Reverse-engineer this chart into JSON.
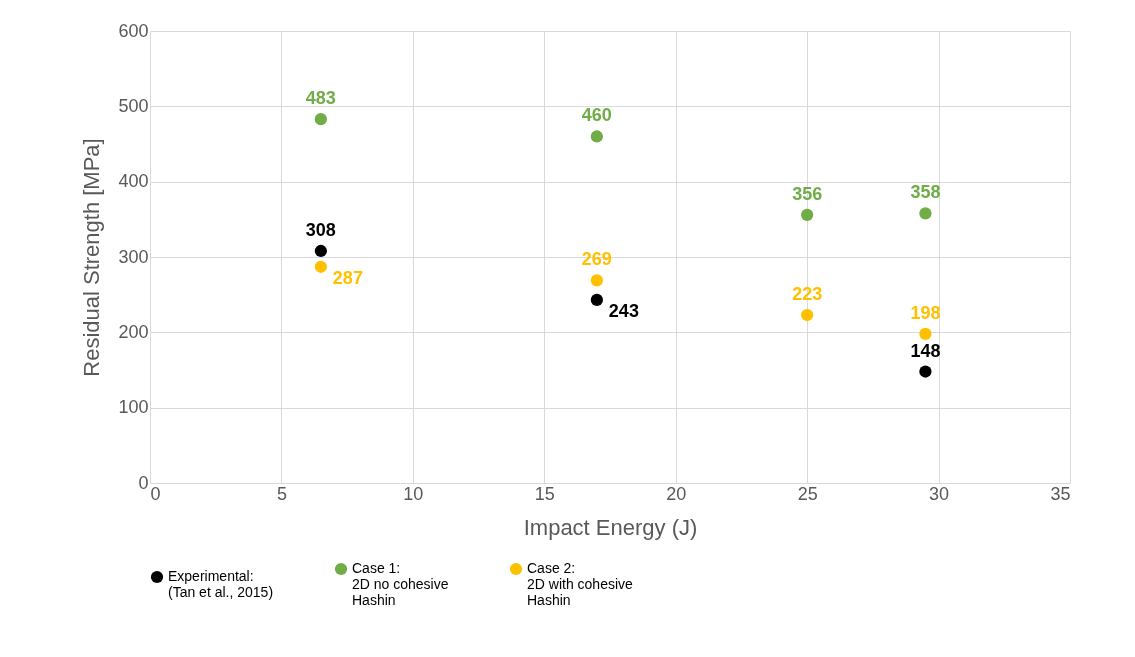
{
  "chart_data": {
    "type": "scatter",
    "xlabel": "Impact Energy (J)",
    "ylabel": "Residual Strength [MPa]",
    "x": [
      6.5,
      17,
      25,
      29.5
    ],
    "series": [
      {
        "name": "Experimental:\n(Tan et al., 2015)",
        "color": "#000000",
        "x": [
          6.5,
          17,
          29.5
        ],
        "values": [
          308,
          243,
          148
        ]
      },
      {
        "name": "Case 1:\n2D no cohesive\nHashin",
        "color": "#70ad47",
        "values": [
          483,
          460,
          356,
          358
        ]
      },
      {
        "name": "Case 2:\n2D with cohesive\nHashin",
        "color": "#ffc000",
        "values": [
          287,
          269,
          223,
          198
        ]
      }
    ],
    "xlim": [
      0,
      35
    ],
    "xticks": [
      0,
      5,
      10,
      15,
      20,
      25,
      30,
      35
    ],
    "ylim": [
      0,
      600
    ],
    "yticks": [
      0,
      100,
      200,
      300,
      400,
      500,
      600
    ],
    "grid": true,
    "legend": "bottom",
    "marker": "circle",
    "data_labels": true
  }
}
